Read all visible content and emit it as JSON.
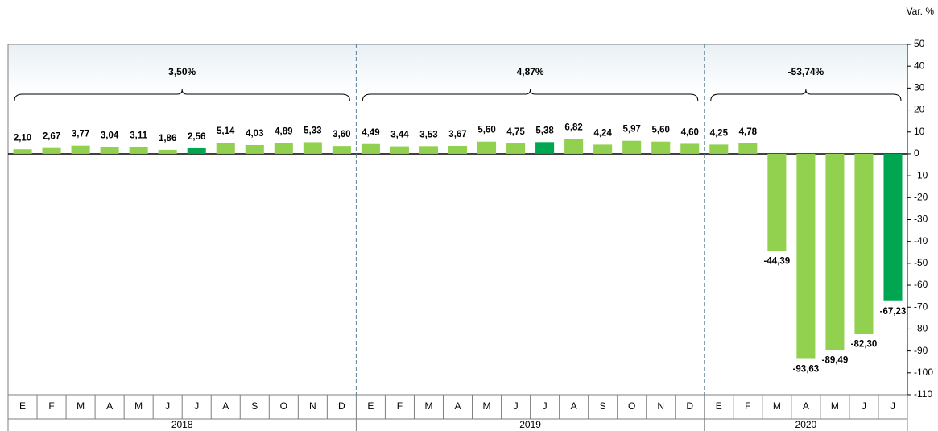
{
  "chart_data": {
    "type": "bar",
    "y_axis_label": "Var. %",
    "ylim": [
      -110,
      50
    ],
    "yticks": [
      50,
      40,
      30,
      20,
      10,
      0,
      -10,
      -20,
      -30,
      -40,
      -50,
      -60,
      -70,
      -80,
      -90,
      -100,
      -110
    ],
    "grid": false,
    "groups": [
      {
        "name": "2018",
        "total": 3.5,
        "total_label": "3,50%",
        "categories": [
          "E",
          "F",
          "M",
          "A",
          "M",
          "J",
          "J",
          "A",
          "S",
          "O",
          "N",
          "D"
        ],
        "values": [
          2.1,
          2.67,
          3.77,
          3.04,
          3.11,
          1.86,
          2.56,
          5.14,
          4.03,
          4.89,
          5.33,
          3.6
        ],
        "value_labels": [
          "2,10",
          "2,67",
          "3,77",
          "3,04",
          "3,11",
          "1,86",
          "2,56",
          "5,14",
          "4,03",
          "4,89",
          "5,33",
          "3,60"
        ],
        "colors": [
          "#92d050",
          "#92d050",
          "#92d050",
          "#92d050",
          "#92d050",
          "#92d050",
          "#00a651",
          "#92d050",
          "#92d050",
          "#92d050",
          "#92d050",
          "#92d050"
        ]
      },
      {
        "name": "2019",
        "total": 4.87,
        "total_label": "4,87%",
        "categories": [
          "E",
          "F",
          "M",
          "A",
          "M",
          "J",
          "J",
          "A",
          "S",
          "O",
          "N",
          "D"
        ],
        "values": [
          4.49,
          3.44,
          3.53,
          3.67,
          5.6,
          4.75,
          5.38,
          6.82,
          4.24,
          5.97,
          5.6,
          4.6
        ],
        "value_labels": [
          "4,49",
          "3,44",
          "3,53",
          "3,67",
          "5,60",
          "4,75",
          "5,38",
          "6,82",
          "4,24",
          "5,97",
          "5,60",
          "4,60"
        ],
        "colors": [
          "#92d050",
          "#92d050",
          "#92d050",
          "#92d050",
          "#92d050",
          "#92d050",
          "#00a651",
          "#92d050",
          "#92d050",
          "#92d050",
          "#92d050",
          "#92d050"
        ]
      },
      {
        "name": "2020",
        "total": -53.74,
        "total_label": "-53,74%",
        "categories": [
          "E",
          "F",
          "M",
          "A",
          "M",
          "J",
          "J"
        ],
        "values": [
          4.25,
          4.78,
          -44.39,
          -93.63,
          -89.49,
          -82.3,
          -67.23
        ],
        "value_labels": [
          "4,25",
          "4,78",
          "-44,39",
          "-93,63",
          "-89,49",
          "-82,30",
          "-67,23"
        ],
        "colors": [
          "#92d050",
          "#92d050",
          "#92d050",
          "#92d050",
          "#92d050",
          "#92d050",
          "#00a651"
        ]
      }
    ]
  }
}
